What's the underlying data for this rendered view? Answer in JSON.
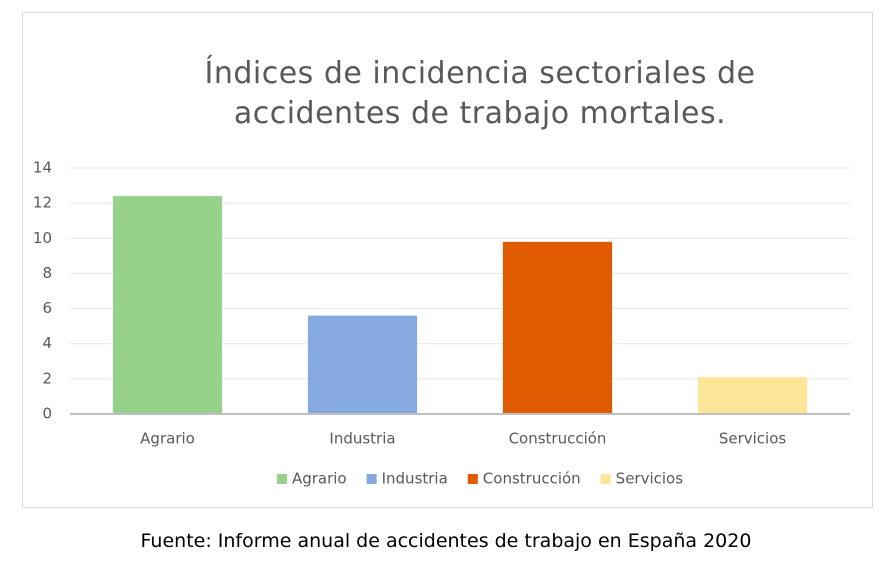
{
  "chart_data": {
    "type": "bar",
    "title": "Índices de incidencia sectoriales de accidentes de trabajo mortales.",
    "categories": [
      "Agrario",
      "Industria",
      "Construcción",
      "Servicios"
    ],
    "values": [
      12.4,
      5.6,
      9.8,
      2.1
    ],
    "colors": [
      "#97d28b",
      "#84aadf",
      "#e05a00",
      "#fde597"
    ],
    "ylim": [
      0,
      14
    ],
    "yticks": [
      0,
      2,
      4,
      6,
      8,
      10,
      12,
      14
    ],
    "grid": true,
    "legend": "bottom"
  },
  "source": "Fuente: Informe anual de accidentes de trabajo en España 2020"
}
